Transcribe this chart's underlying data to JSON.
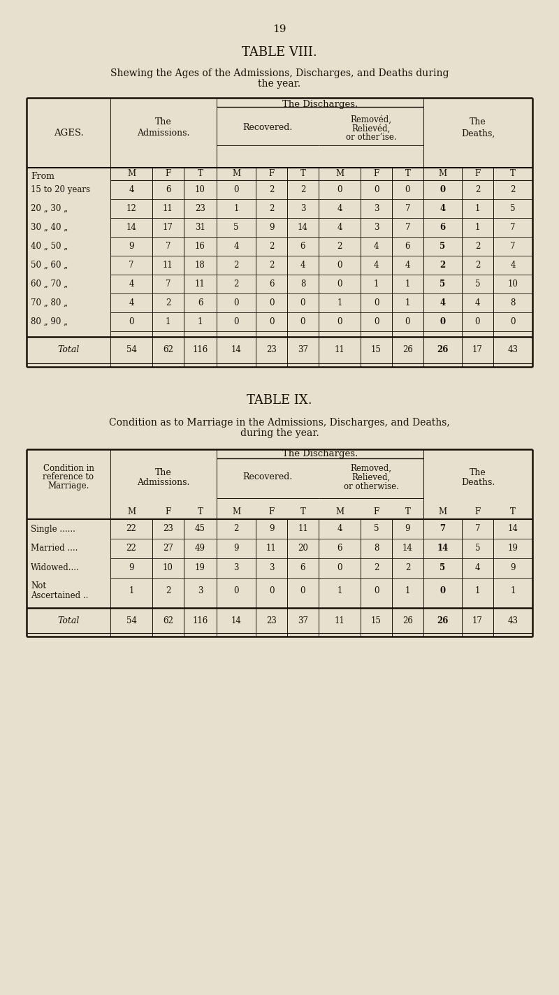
{
  "bg_color": "#e8e0cf",
  "page_number": "19",
  "text_color": "#1a1008",
  "line_color": "#1a1008",
  "table8_title": "TABLE VIII.",
  "table8_subtitle1": "Shewing the Ages of the Admissions, Discharges, and Deaths during",
  "table8_subtitle2": "the year.",
  "table8_row_labels": [
    "15 to 20 years",
    "20 „ 30 „",
    "30 „ 40 „",
    "40 „ 50 „",
    "50 „ 60 „",
    "60 „ 70 „",
    "70 „ 80 „",
    "80 „ 90 „"
  ],
  "table8_data": [
    [
      4,
      6,
      10,
      0,
      2,
      2,
      0,
      0,
      0,
      0,
      2,
      2
    ],
    [
      12,
      11,
      23,
      1,
      2,
      3,
      4,
      3,
      7,
      4,
      1,
      5
    ],
    [
      14,
      17,
      31,
      5,
      9,
      14,
      4,
      3,
      7,
      6,
      1,
      7
    ],
    [
      9,
      7,
      16,
      4,
      2,
      6,
      2,
      4,
      6,
      5,
      2,
      7
    ],
    [
      7,
      11,
      18,
      2,
      2,
      4,
      0,
      4,
      4,
      2,
      2,
      4
    ],
    [
      4,
      7,
      11,
      2,
      6,
      8,
      0,
      1,
      1,
      5,
      5,
      10
    ],
    [
      4,
      2,
      6,
      0,
      0,
      0,
      1,
      0,
      1,
      4,
      4,
      8
    ],
    [
      0,
      1,
      1,
      0,
      0,
      0,
      0,
      0,
      0,
      0,
      0,
      0
    ]
  ],
  "table8_total": [
    54,
    62,
    116,
    14,
    23,
    37,
    11,
    15,
    26,
    26,
    17,
    43
  ],
  "table9_title": "TABLE IX.",
  "table9_subtitle1": "Condition as to Marriage in the Admissions, Discharges, and Deaths,",
  "table9_subtitle2": "during the year.",
  "table9_row_labels": [
    "Single ......",
    "Married ....",
    "Widowed....",
    "Not\nAscertained .."
  ],
  "table9_data": [
    [
      22,
      23,
      45,
      2,
      9,
      11,
      4,
      5,
      9,
      7,
      7,
      14
    ],
    [
      22,
      27,
      49,
      9,
      11,
      20,
      6,
      8,
      14,
      14,
      5,
      19
    ],
    [
      9,
      10,
      19,
      3,
      3,
      6,
      0,
      2,
      2,
      5,
      4,
      9
    ],
    [
      1,
      2,
      3,
      0,
      0,
      0,
      1,
      0,
      1,
      0,
      1,
      1
    ]
  ],
  "table9_total": [
    54,
    62,
    116,
    14,
    23,
    37,
    11,
    15,
    26,
    26,
    17,
    43
  ]
}
